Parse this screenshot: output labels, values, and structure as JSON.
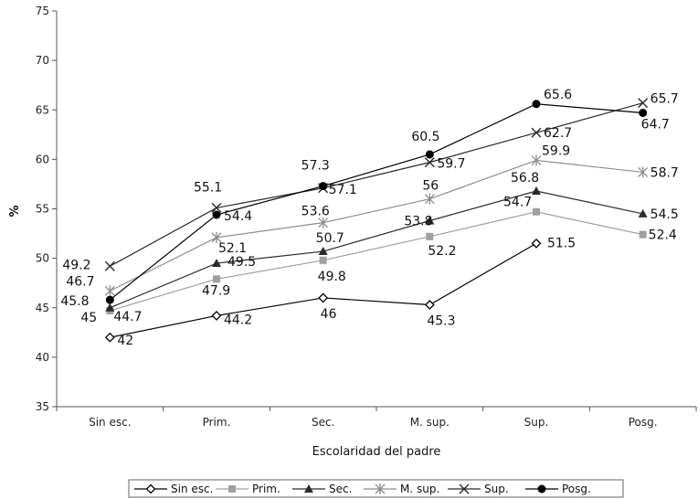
{
  "chart_data": {
    "type": "line",
    "xlabel": "Escolaridad del padre",
    "ylabel": "%",
    "ylim": [
      35,
      75
    ],
    "yticks": [
      35,
      40,
      45,
      50,
      55,
      60,
      65,
      70,
      75
    ],
    "categories": [
      "Sin esc.",
      "Prim.",
      "Sec.",
      "M. sup.",
      "Sup.",
      "Posg."
    ],
    "grid": false,
    "legend_position": "bottom",
    "series": [
      {
        "name": "Sin esc.",
        "marker": "diamond-open",
        "color": "#000000",
        "values": [
          42,
          44.2,
          46,
          45.3,
          51.5,
          null
        ]
      },
      {
        "name": "Prim.",
        "marker": "square",
        "color": "#a0a0a0",
        "values": [
          44.7,
          47.9,
          49.8,
          52.2,
          54.7,
          52.4
        ]
      },
      {
        "name": "Sec.",
        "marker": "triangle",
        "color": "#2a2a2a",
        "values": [
          45,
          49.5,
          50.7,
          53.8,
          56.8,
          54.5
        ]
      },
      {
        "name": "M. sup.",
        "marker": "star",
        "color": "#8c8c8c",
        "values": [
          46.7,
          52.1,
          53.6,
          56,
          59.9,
          58.7
        ]
      },
      {
        "name": "Sup.",
        "marker": "x",
        "color": "#2a2a2a",
        "values": [
          49.2,
          55.1,
          57.1,
          59.7,
          62.7,
          65.7
        ]
      },
      {
        "name": "Posg.",
        "marker": "circle",
        "color": "#000000",
        "values": [
          45.8,
          54.4,
          57.3,
          60.5,
          65.6,
          64.7
        ]
      }
    ]
  },
  "data_labels": [
    {
      "series": 0,
      "index": 0,
      "text": "42"
    },
    {
      "series": 0,
      "index": 1,
      "text": "44.2"
    },
    {
      "series": 0,
      "index": 2,
      "text": "46"
    },
    {
      "series": 0,
      "index": 3,
      "text": "45.3"
    },
    {
      "series": 0,
      "index": 4,
      "text": "51.5"
    },
    {
      "series": 1,
      "index": 0,
      "text": "44.7"
    },
    {
      "series": 1,
      "index": 1,
      "text": "47.9"
    },
    {
      "series": 1,
      "index": 2,
      "text": "49.8"
    },
    {
      "series": 1,
      "index": 3,
      "text": "52.2"
    },
    {
      "series": 1,
      "index": 4,
      "text": "54.7"
    },
    {
      "series": 1,
      "index": 5,
      "text": "52.4"
    },
    {
      "series": 2,
      "index": 0,
      "text": "45"
    },
    {
      "series": 2,
      "index": 1,
      "text": "49.5"
    },
    {
      "series": 2,
      "index": 2,
      "text": "50.7"
    },
    {
      "series": 2,
      "index": 3,
      "text": "53.8"
    },
    {
      "series": 2,
      "index": 4,
      "text": "56.8"
    },
    {
      "series": 2,
      "index": 5,
      "text": "54.5"
    },
    {
      "series": 3,
      "index": 0,
      "text": "46.7"
    },
    {
      "series": 3,
      "index": 1,
      "text": "52.1"
    },
    {
      "series": 3,
      "index": 2,
      "text": "53.6"
    },
    {
      "series": 3,
      "index": 3,
      "text": "56"
    },
    {
      "series": 3,
      "index": 4,
      "text": "59.9"
    },
    {
      "series": 3,
      "index": 5,
      "text": "58.7"
    },
    {
      "series": 4,
      "index": 0,
      "text": "49.2"
    },
    {
      "series": 4,
      "index": 1,
      "text": "55.1"
    },
    {
      "series": 4,
      "index": 2,
      "text": "57.1"
    },
    {
      "series": 4,
      "index": 3,
      "text": "59.7"
    },
    {
      "series": 4,
      "index": 4,
      "text": "62.7"
    },
    {
      "series": 4,
      "index": 5,
      "text": "65.7"
    },
    {
      "series": 5,
      "index": 0,
      "text": "45.8"
    },
    {
      "series": 5,
      "index": 1,
      "text": "54.4"
    },
    {
      "series": 5,
      "index": 2,
      "text": "57.3"
    },
    {
      "series": 5,
      "index": 3,
      "text": "60.5"
    },
    {
      "series": 5,
      "index": 4,
      "text": "65.6"
    },
    {
      "series": 5,
      "index": 5,
      "text": "64.7"
    }
  ]
}
